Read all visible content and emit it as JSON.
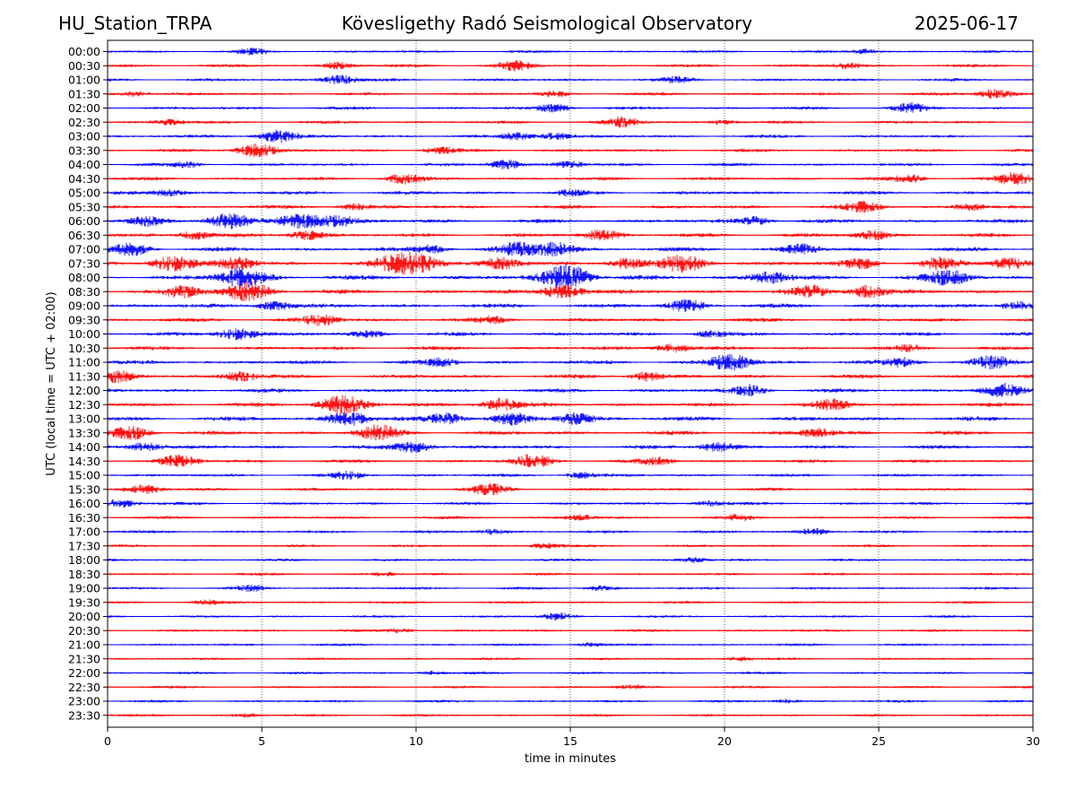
{
  "header": {
    "station": "HU_Station_TRPA",
    "observatory": "Kövesligethy Radó Seismological Observatory",
    "date": "2025-06-17"
  },
  "chart_data": {
    "type": "line",
    "xlabel": "time in minutes",
    "ylabel": "UTC (local time = UTC + 02:00)",
    "xlim": [
      0,
      30
    ],
    "xticks": [
      0,
      5,
      10,
      15,
      20,
      25,
      30
    ],
    "grid": "vertical dotted",
    "trace_colors": [
      "#0000ff",
      "#ff0000"
    ],
    "rows": [
      {
        "label": "00:00",
        "activity": 0.35,
        "bursts": [
          {
            "x": 4.7,
            "a": 0.5
          },
          {
            "x": 24.5,
            "a": 0.4
          }
        ]
      },
      {
        "label": "00:30",
        "activity": 0.45,
        "bursts": [
          {
            "x": 7.5,
            "a": 0.6
          },
          {
            "x": 13.2,
            "a": 0.9
          },
          {
            "x": 24,
            "a": 0.5
          }
        ]
      },
      {
        "label": "01:00",
        "activity": 0.45,
        "bursts": [
          {
            "x": 7.5,
            "a": 0.9
          },
          {
            "x": 18.5,
            "a": 0.5
          }
        ]
      },
      {
        "label": "01:30",
        "activity": 0.45,
        "bursts": [
          {
            "x": 0.9,
            "a": 0.5
          },
          {
            "x": 14.5,
            "a": 0.5
          },
          {
            "x": 28.8,
            "a": 0.9
          }
        ]
      },
      {
        "label": "02:00",
        "activity": 0.5,
        "bursts": [
          {
            "x": 14.5,
            "a": 0.8
          },
          {
            "x": 26,
            "a": 0.9
          }
        ]
      },
      {
        "label": "02:30",
        "activity": 0.5,
        "bursts": [
          {
            "x": 2,
            "a": 0.5
          },
          {
            "x": 16.7,
            "a": 0.9
          },
          {
            "x": 20,
            "a": 0.4
          }
        ]
      },
      {
        "label": "03:00",
        "activity": 0.5,
        "bursts": [
          {
            "x": 5.5,
            "a": 1.2
          },
          {
            "x": 13.3,
            "a": 0.7
          },
          {
            "x": 14.5,
            "a": 0.7
          }
        ]
      },
      {
        "label": "03:30",
        "activity": 0.55,
        "bursts": [
          {
            "x": 4.8,
            "a": 1.3
          },
          {
            "x": 10.8,
            "a": 0.6
          }
        ]
      },
      {
        "label": "04:00",
        "activity": 0.5,
        "bursts": [
          {
            "x": 2.6,
            "a": 0.5
          },
          {
            "x": 12.9,
            "a": 0.9
          },
          {
            "x": 15,
            "a": 0.6
          }
        ]
      },
      {
        "label": "04:30",
        "activity": 0.6,
        "bursts": [
          {
            "x": 9.6,
            "a": 0.9
          },
          {
            "x": 26,
            "a": 0.7
          },
          {
            "x": 29.4,
            "a": 1.1
          }
        ]
      },
      {
        "label": "05:00",
        "activity": 0.7,
        "bursts": [
          {
            "x": 2,
            "a": 0.6
          },
          {
            "x": 15,
            "a": 0.5
          }
        ]
      },
      {
        "label": "05:30",
        "activity": 0.7,
        "bursts": [
          {
            "x": 8,
            "a": 0.6
          },
          {
            "x": 24.5,
            "a": 0.9
          },
          {
            "x": 28,
            "a": 0.6
          }
        ]
      },
      {
        "label": "06:00",
        "activity": 0.85,
        "bursts": [
          {
            "x": 1.3,
            "a": 0.9
          },
          {
            "x": 3.9,
            "a": 1.5
          },
          {
            "x": 6.3,
            "a": 1.5
          },
          {
            "x": 7.5,
            "a": 1.0
          },
          {
            "x": 21,
            "a": 0.8
          }
        ]
      },
      {
        "label": "06:30",
        "activity": 0.8,
        "bursts": [
          {
            "x": 2.8,
            "a": 0.8
          },
          {
            "x": 6.5,
            "a": 0.9
          },
          {
            "x": 16,
            "a": 1.0
          },
          {
            "x": 24.8,
            "a": 0.8
          }
        ]
      },
      {
        "label": "07:00",
        "activity": 0.9,
        "bursts": [
          {
            "x": 0.8,
            "a": 1.1
          },
          {
            "x": 10.5,
            "a": 0.8
          },
          {
            "x": 13.3,
            "a": 1.2
          },
          {
            "x": 14.5,
            "a": 1.3
          },
          {
            "x": 22.5,
            "a": 0.9
          }
        ]
      },
      {
        "label": "07:30",
        "activity": 1.0,
        "bursts": [
          {
            "x": 2.1,
            "a": 1.5
          },
          {
            "x": 4.2,
            "a": 1.1
          },
          {
            "x": 9.3,
            "a": 1.3
          },
          {
            "x": 10.1,
            "a": 1.7
          },
          {
            "x": 12.8,
            "a": 1.0
          },
          {
            "x": 16.8,
            "a": 1.0
          },
          {
            "x": 18.7,
            "a": 1.6
          },
          {
            "x": 24.4,
            "a": 1.0
          },
          {
            "x": 27,
            "a": 1.0
          },
          {
            "x": 29.2,
            "a": 1.1
          }
        ]
      },
      {
        "label": "08:00",
        "activity": 1.0,
        "bursts": [
          {
            "x": 4.4,
            "a": 1.9
          },
          {
            "x": 14.7,
            "a": 1.5
          },
          {
            "x": 15.1,
            "a": 1.4
          },
          {
            "x": 21.5,
            "a": 1.1
          },
          {
            "x": 27.3,
            "a": 1.4
          }
        ]
      },
      {
        "label": "08:30",
        "activity": 1.0,
        "bursts": [
          {
            "x": 2.4,
            "a": 1.1
          },
          {
            "x": 4.6,
            "a": 1.8
          },
          {
            "x": 14.8,
            "a": 1.4
          },
          {
            "x": 22.8,
            "a": 1.0
          },
          {
            "x": 24.6,
            "a": 1.2
          }
        ]
      },
      {
        "label": "09:00",
        "activity": 0.9,
        "bursts": [
          {
            "x": 5.4,
            "a": 0.9
          },
          {
            "x": 18.8,
            "a": 1.1
          },
          {
            "x": 29.5,
            "a": 0.8
          }
        ]
      },
      {
        "label": "09:30",
        "activity": 0.8,
        "bursts": [
          {
            "x": 6.9,
            "a": 1.0
          },
          {
            "x": 12.5,
            "a": 0.6
          }
        ]
      },
      {
        "label": "10:00",
        "activity": 0.8,
        "bursts": [
          {
            "x": 4.2,
            "a": 1.2
          },
          {
            "x": 8.5,
            "a": 0.6
          },
          {
            "x": 19.5,
            "a": 0.6
          }
        ]
      },
      {
        "label": "10:30",
        "activity": 0.7,
        "bursts": [
          {
            "x": 18.3,
            "a": 0.9
          },
          {
            "x": 26,
            "a": 0.5
          }
        ]
      },
      {
        "label": "11:00",
        "activity": 0.85,
        "bursts": [
          {
            "x": 10.8,
            "a": 0.7
          },
          {
            "x": 20.2,
            "a": 1.5
          },
          {
            "x": 25.8,
            "a": 0.8
          },
          {
            "x": 28.7,
            "a": 1.2
          }
        ]
      },
      {
        "label": "11:30",
        "activity": 0.8,
        "bursts": [
          {
            "x": 0.3,
            "a": 1.0
          },
          {
            "x": 4.3,
            "a": 0.9
          },
          {
            "x": 17.5,
            "a": 0.9
          }
        ]
      },
      {
        "label": "12:00",
        "activity": 0.8,
        "bursts": [
          {
            "x": 20.8,
            "a": 1.0
          },
          {
            "x": 29,
            "a": 1.2
          }
        ]
      },
      {
        "label": "12:30",
        "activity": 0.85,
        "bursts": [
          {
            "x": 7.6,
            "a": 1.7
          },
          {
            "x": 12.7,
            "a": 1.2
          },
          {
            "x": 23.5,
            "a": 1.0
          }
        ]
      },
      {
        "label": "13:00",
        "activity": 0.95,
        "bursts": [
          {
            "x": 7.8,
            "a": 1.3
          },
          {
            "x": 11,
            "a": 1.1
          },
          {
            "x": 13.1,
            "a": 1.0
          },
          {
            "x": 15.2,
            "a": 1.1
          }
        ]
      },
      {
        "label": "13:30",
        "activity": 0.85,
        "bursts": [
          {
            "x": 0.8,
            "a": 1.2
          },
          {
            "x": 8.8,
            "a": 1.4
          },
          {
            "x": 23,
            "a": 0.8
          }
        ]
      },
      {
        "label": "14:00",
        "activity": 0.75,
        "bursts": [
          {
            "x": 1.2,
            "a": 0.9
          },
          {
            "x": 9.9,
            "a": 1.1
          },
          {
            "x": 19.8,
            "a": 1.0
          }
        ]
      },
      {
        "label": "14:30",
        "activity": 0.6,
        "bursts": [
          {
            "x": 2.3,
            "a": 1.1
          },
          {
            "x": 13.8,
            "a": 1.2
          },
          {
            "x": 17.8,
            "a": 0.7
          }
        ]
      },
      {
        "label": "15:00",
        "activity": 0.5,
        "bursts": [
          {
            "x": 7.8,
            "a": 0.7
          },
          {
            "x": 15.3,
            "a": 0.6
          }
        ]
      },
      {
        "label": "15:30",
        "activity": 0.5,
        "bursts": [
          {
            "x": 1.2,
            "a": 0.8
          },
          {
            "x": 12.4,
            "a": 1.0
          }
        ]
      },
      {
        "label": "16:00",
        "activity": 0.45,
        "bursts": [
          {
            "x": 0.4,
            "a": 0.8
          },
          {
            "x": 19.5,
            "a": 0.6
          }
        ]
      },
      {
        "label": "16:30",
        "activity": 0.4,
        "bursts": [
          {
            "x": 15.3,
            "a": 0.5
          },
          {
            "x": 20.5,
            "a": 0.5
          }
        ]
      },
      {
        "label": "17:00",
        "activity": 0.4,
        "bursts": [
          {
            "x": 12.5,
            "a": 0.5
          },
          {
            "x": 22.9,
            "a": 0.6
          }
        ]
      },
      {
        "label": "17:30",
        "activity": 0.35,
        "bursts": [
          {
            "x": 14.2,
            "a": 0.5
          }
        ]
      },
      {
        "label": "18:00",
        "activity": 0.3,
        "bursts": [
          {
            "x": 19,
            "a": 0.4
          }
        ]
      },
      {
        "label": "18:30",
        "activity": 0.3,
        "bursts": [
          {
            "x": 9,
            "a": 0.3
          }
        ]
      },
      {
        "label": "19:00",
        "activity": 0.35,
        "bursts": [
          {
            "x": 4.7,
            "a": 0.5
          },
          {
            "x": 16,
            "a": 0.4
          }
        ]
      },
      {
        "label": "19:30",
        "activity": 0.3,
        "bursts": [
          {
            "x": 3.2,
            "a": 0.4
          }
        ]
      },
      {
        "label": "20:00",
        "activity": 0.25,
        "bursts": [
          {
            "x": 14.6,
            "a": 0.6
          }
        ]
      },
      {
        "label": "20:30",
        "activity": 0.3,
        "bursts": [
          {
            "x": 9.5,
            "a": 0.4
          }
        ]
      },
      {
        "label": "21:00",
        "activity": 0.3,
        "bursts": [
          {
            "x": 15.6,
            "a": 0.4
          }
        ]
      },
      {
        "label": "21:30",
        "activity": 0.3,
        "bursts": [
          {
            "x": 20.5,
            "a": 0.4
          }
        ]
      },
      {
        "label": "22:00",
        "activity": 0.3,
        "bursts": [
          {
            "x": 10.5,
            "a": 0.3
          }
        ]
      },
      {
        "label": "22:30",
        "activity": 0.3,
        "bursts": [
          {
            "x": 17,
            "a": 0.3
          }
        ]
      },
      {
        "label": "23:00",
        "activity": 0.3,
        "bursts": [
          {
            "x": 22,
            "a": 0.3
          }
        ]
      },
      {
        "label": "23:30",
        "activity": 0.3,
        "bursts": [
          {
            "x": 4.5,
            "a": 0.3
          }
        ]
      }
    ]
  }
}
